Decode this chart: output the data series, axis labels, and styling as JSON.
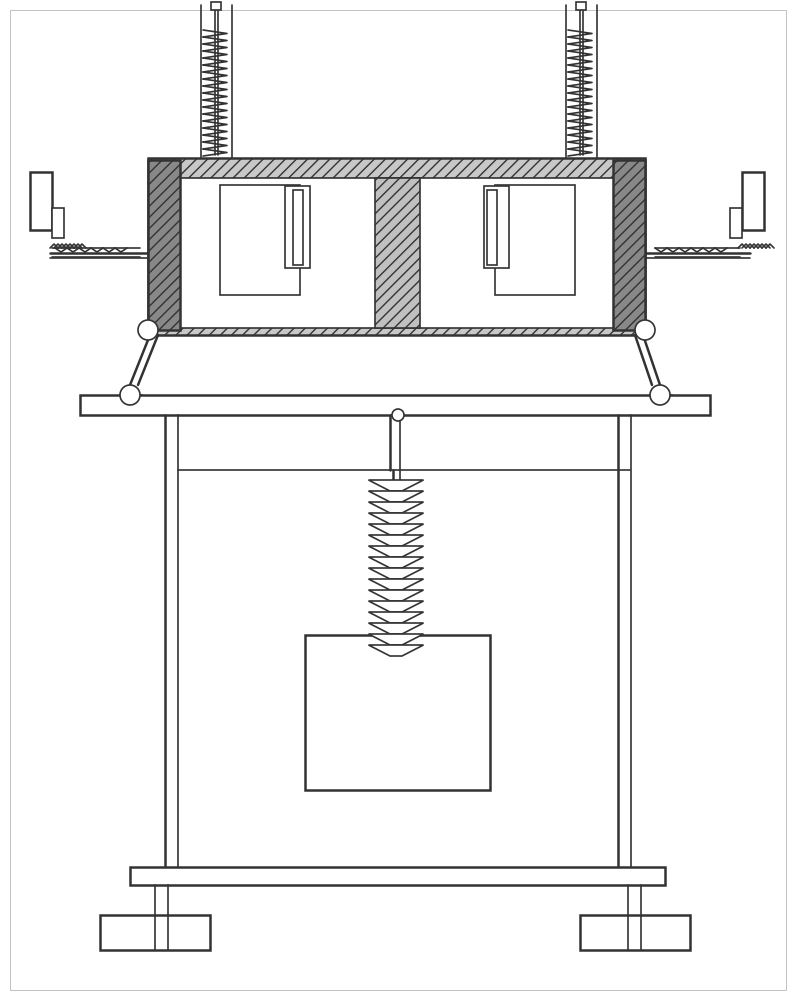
{
  "bg_color": "#ffffff",
  "line_color": "#333333",
  "hatch_color": "#555555",
  "lw": 1.2,
  "fig_width": 7.96,
  "fig_height": 10.0
}
